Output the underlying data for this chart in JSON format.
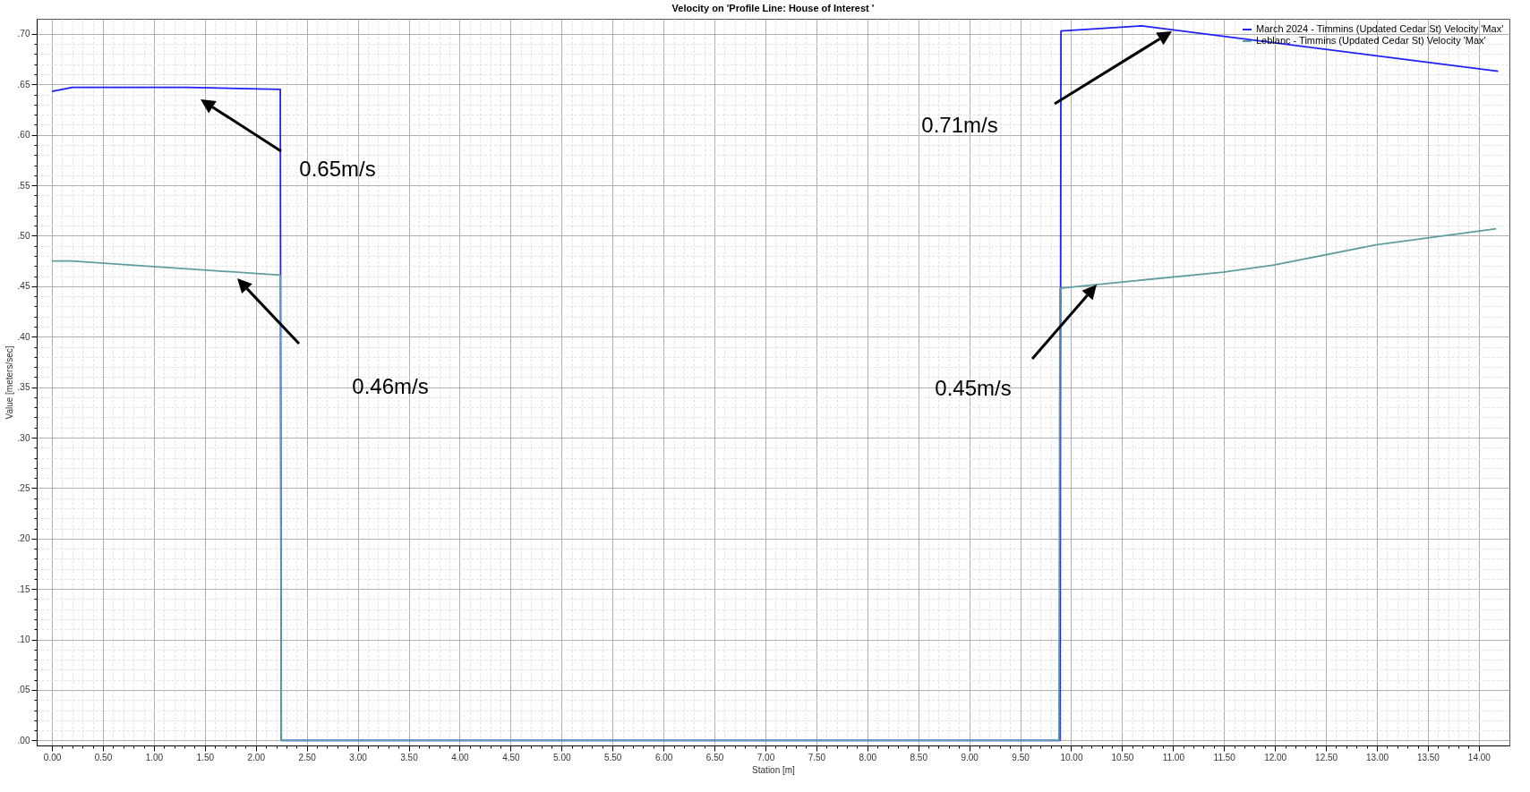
{
  "chart_data": {
    "type": "line",
    "title": "Velocity on 'Profile Line: House of Interest '",
    "xlabel": "Station [m]",
    "ylabel": "Value [meters/sec]",
    "series": [
      {
        "name": "March 2024 - Timmins (Updated Cedar St) Velocity 'Max'",
        "color": "#1f1fff",
        "x": [
          0,
          0.2,
          1.33,
          2.24,
          2.25,
          9.89,
          9.9,
          10.69,
          14.19
        ],
        "values": [
          0.643,
          0.647,
          0.647,
          0.645,
          0,
          0,
          0.703,
          0.708,
          0.663
        ]
      },
      {
        "name": "Leblanc - Timmins (Updated Cedar St) Velocity 'Max'",
        "color": "#5f9ea0",
        "x": [
          0,
          0.19,
          2.24,
          2.25,
          9.88,
          9.89,
          10.48,
          11.49,
          11.99,
          12.99,
          14.17
        ],
        "values": [
          0.475,
          0.475,
          0.461,
          0,
          0,
          0.448,
          0.454,
          0.464,
          0.471,
          0.491,
          0.507
        ]
      }
    ],
    "xlim": [
      -0.15,
      14.3
    ],
    "ylim": [
      -0.005,
      0.715
    ],
    "xticks": [
      {
        "value": 0,
        "label": "0.00"
      },
      {
        "value": 0.5,
        "label": "0.50"
      },
      {
        "value": 1,
        "label": "1.00"
      },
      {
        "value": 1.5,
        "label": "1.50"
      },
      {
        "value": 2,
        "label": "2.00"
      },
      {
        "value": 2.5,
        "label": "2.50"
      },
      {
        "value": 3,
        "label": "3.00"
      },
      {
        "value": 3.5,
        "label": "3.50"
      },
      {
        "value": 4,
        "label": "4.00"
      },
      {
        "value": 4.5,
        "label": "4.50"
      },
      {
        "value": 5,
        "label": "5.00"
      },
      {
        "value": 5.5,
        "label": "5.50"
      },
      {
        "value": 6,
        "label": "6.00"
      },
      {
        "value": 6.5,
        "label": "6.50"
      },
      {
        "value": 7,
        "label": "7.00"
      },
      {
        "value": 7.5,
        "label": "7.50"
      },
      {
        "value": 8,
        "label": "8.00"
      },
      {
        "value": 8.5,
        "label": "8.50"
      },
      {
        "value": 9,
        "label": "9.00"
      },
      {
        "value": 9.5,
        "label": "9.50"
      },
      {
        "value": 10,
        "label": "10.00"
      },
      {
        "value": 10.5,
        "label": "10.50"
      },
      {
        "value": 11,
        "label": "11.00"
      },
      {
        "value": 11.5,
        "label": "11.50"
      },
      {
        "value": 12,
        "label": "12.00"
      },
      {
        "value": 12.5,
        "label": "12.50"
      },
      {
        "value": 13,
        "label": "13.00"
      },
      {
        "value": 13.5,
        "label": "13.50"
      },
      {
        "value": 14,
        "label": "14.00"
      }
    ],
    "yticks": [
      {
        "value": 0,
        "label": ".00"
      },
      {
        "value": 0.05,
        "label": ".05"
      },
      {
        "value": 0.1,
        "label": ".10"
      },
      {
        "value": 0.15,
        "label": ".15"
      },
      {
        "value": 0.2,
        "label": ".20"
      },
      {
        "value": 0.25,
        "label": ".25"
      },
      {
        "value": 0.3,
        "label": ".30"
      },
      {
        "value": 0.35,
        "label": ".35"
      },
      {
        "value": 0.4,
        "label": ".40"
      },
      {
        "value": 0.45,
        "label": ".45"
      },
      {
        "value": 0.5,
        "label": ".50"
      },
      {
        "value": 0.55,
        "label": ".55"
      },
      {
        "value": 0.6,
        "label": ".60"
      },
      {
        "value": 0.65,
        "label": ".65"
      },
      {
        "value": 0.7,
        "label": ".70"
      }
    ],
    "grid": true,
    "legend": "top right",
    "annotations": [
      "0.65m/s",
      "0.46m/s",
      "0.71m/s",
      "0.45m/s"
    ]
  }
}
